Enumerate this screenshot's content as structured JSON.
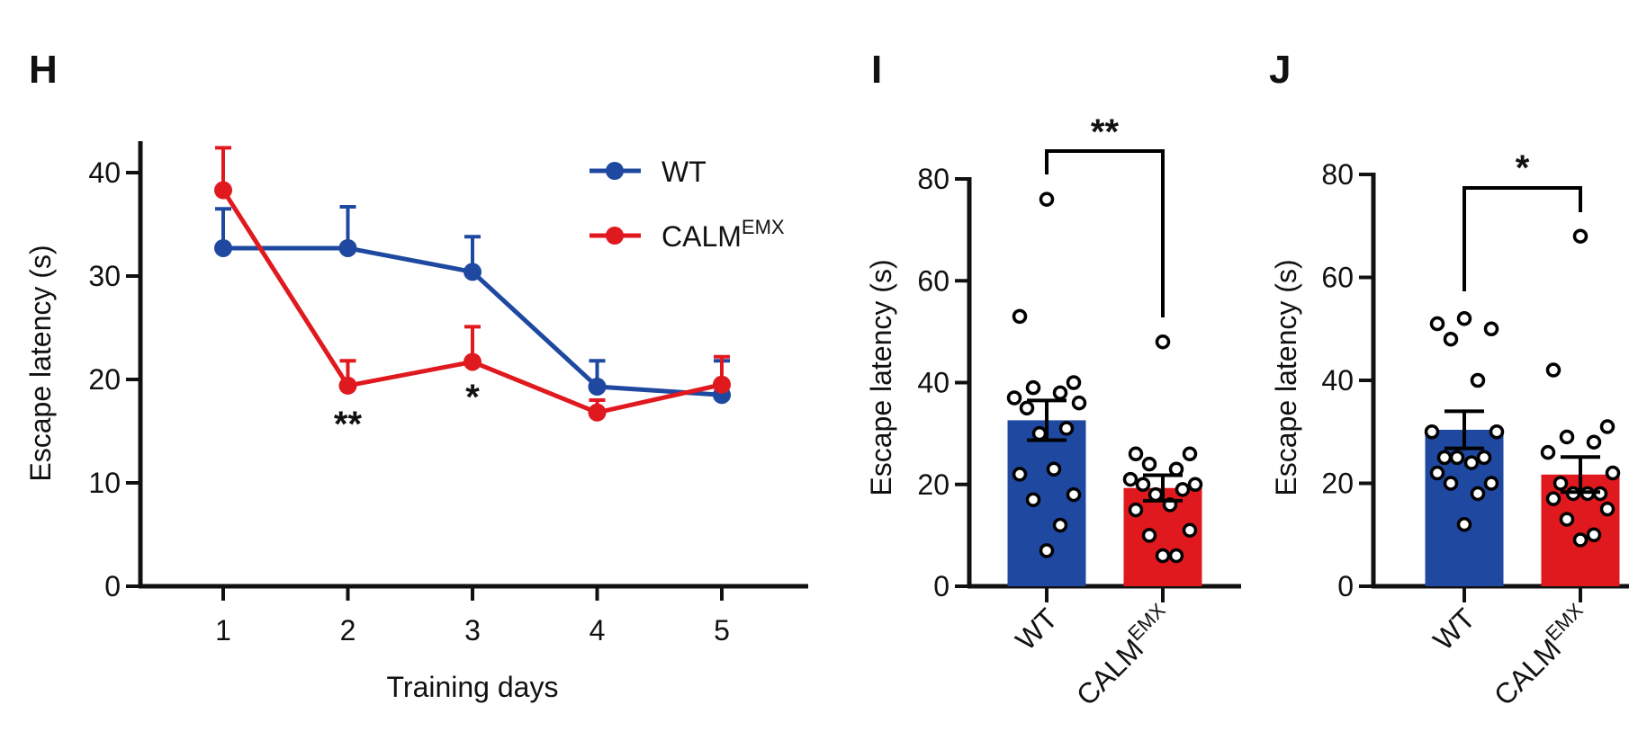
{
  "colors": {
    "wt": "#1f48a0",
    "calm": "#e0191f",
    "axis": "#111111"
  },
  "chart_data": [
    {
      "panel": "H",
      "type": "line",
      "xlabel": "Training days",
      "ylabel": "Escape latency (s)",
      "x": [
        1,
        2,
        3,
        4,
        5
      ],
      "xticks": [
        "1",
        "2",
        "3",
        "4",
        "5"
      ],
      "ylim": [
        0,
        43
      ],
      "yticks": [
        "0",
        "10",
        "20",
        "30",
        "40"
      ],
      "legend": {
        "placement": "top-right",
        "entries": [
          {
            "name": "WT"
          },
          {
            "name": "CALM",
            "sup": "EMX"
          }
        ]
      },
      "series": [
        {
          "name": "WT",
          "values": [
            32.7,
            32.7,
            30.4,
            19.3,
            18.5
          ],
          "sem": [
            3.8,
            4.0,
            3.4,
            2.5,
            3.3
          ]
        },
        {
          "name": "CALM EMX",
          "values": [
            38.3,
            19.4,
            21.7,
            16.8,
            19.5
          ],
          "sem": [
            4.1,
            2.4,
            3.4,
            1.2,
            2.7
          ]
        }
      ],
      "annotations": [
        {
          "x": 2,
          "text": "**"
        },
        {
          "x": 3,
          "text": "*"
        }
      ]
    },
    {
      "panel": "I",
      "type": "bar",
      "ylabel": "Escape latency (s)",
      "ylim": [
        0,
        80
      ],
      "yticks": [
        "0",
        "20",
        "40",
        "60",
        "80"
      ],
      "categories": [
        {
          "name": "WT"
        },
        {
          "name": "CALM",
          "sup": "EMX"
        }
      ],
      "values": [
        32.6,
        19.3
      ],
      "sem": [
        3.9,
        2.5
      ],
      "points": [
        [
          76,
          53,
          40,
          39,
          38,
          37,
          36,
          35,
          31,
          30,
          23,
          22,
          18,
          17,
          12,
          7
        ],
        [
          48,
          26,
          26,
          24,
          23,
          21,
          20,
          20,
          19,
          18,
          16,
          15,
          11,
          10,
          6,
          6
        ]
      ],
      "significance": "**"
    },
    {
      "panel": "J",
      "type": "bar",
      "ylabel": "Escape latency (s)",
      "ylim": [
        0,
        80
      ],
      "yticks": [
        "0",
        "20",
        "40",
        "60",
        "80"
      ],
      "categories": [
        {
          "name": "WT"
        },
        {
          "name": "CALM",
          "sup": "EMX"
        }
      ],
      "values": [
        30.4,
        21.7
      ],
      "sem": [
        3.6,
        3.4
      ],
      "points": [
        [
          52,
          51,
          50,
          48,
          40,
          30,
          30,
          25,
          25,
          25,
          24,
          22,
          20,
          20,
          18,
          12
        ],
        [
          68,
          42,
          31,
          29,
          28,
          26,
          22,
          20,
          18,
          18,
          18,
          17,
          15,
          13,
          10,
          9
        ]
      ],
      "significance": "*"
    }
  ]
}
